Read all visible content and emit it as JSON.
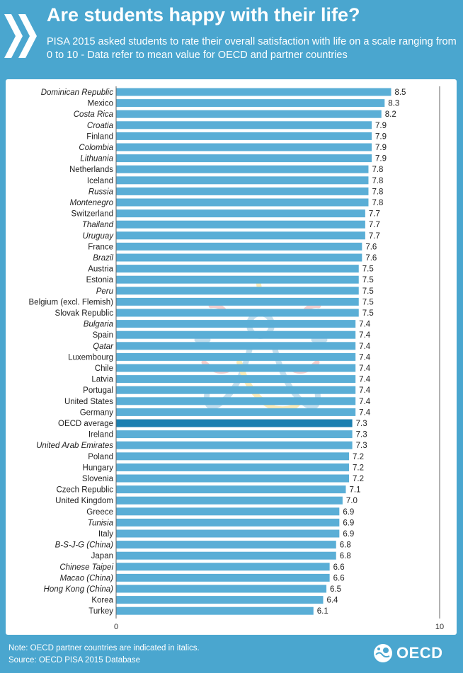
{
  "header": {
    "title": "Are students happy with their life?",
    "subtitle": "PISA 2015 asked students to rate their overall satisfaction with life on a scale ranging from 0 to 10 - Data refer to mean value for OECD and partner countries"
  },
  "chart_data": {
    "type": "bar",
    "orientation": "horizontal",
    "title": "Are students happy with their life?",
    "xlabel": "",
    "ylabel": "",
    "xlim": [
      0,
      10
    ],
    "ticks": [
      "0",
      "10"
    ],
    "categories": [
      "Dominican Republic",
      "Mexico",
      "Costa Rica",
      "Croatia",
      "Finland",
      "Colombia",
      "Lithuania",
      "Netherlands",
      "Iceland",
      "Russia",
      "Montenegro",
      "Switzerland",
      "Thailand",
      "Uruguay",
      "France",
      "Brazil",
      "Austria",
      "Estonia",
      "Peru",
      "Belgium (excl. Flemish)",
      "Slovak Republic",
      "Bulgaria",
      "Spain",
      "Qatar",
      "Luxembourg",
      "Chile",
      "Latvia",
      "Portugal",
      "United States",
      "Germany",
      "OECD average",
      "Ireland",
      "United Arab Emirates",
      "Poland",
      "Hungary",
      "Slovenia",
      "Czech Republic",
      "United Kingdom",
      "Greece",
      "Tunisia",
      "Italy",
      "B-S-J-G (China)",
      "Japan",
      "Chinese Taipei",
      "Macao (China)",
      "Hong Kong (China)",
      "Korea",
      "Turkey"
    ],
    "values": [
      8.5,
      8.3,
      8.2,
      7.9,
      7.9,
      7.9,
      7.9,
      7.8,
      7.8,
      7.8,
      7.8,
      7.7,
      7.7,
      7.7,
      7.6,
      7.6,
      7.5,
      7.5,
      7.5,
      7.5,
      7.5,
      7.4,
      7.4,
      7.4,
      7.4,
      7.4,
      7.4,
      7.4,
      7.4,
      7.4,
      7.3,
      7.3,
      7.3,
      7.2,
      7.2,
      7.2,
      7.1,
      7.0,
      6.9,
      6.9,
      6.9,
      6.8,
      6.8,
      6.6,
      6.6,
      6.5,
      6.4,
      6.1
    ],
    "value_labels": [
      "8.5",
      "8.3",
      "8.2",
      "7.9",
      "7.9",
      "7.9",
      "7.9",
      "7.8",
      "7.8",
      "7.8",
      "7.8",
      "7.7",
      "7.7",
      "7.7",
      "7.6",
      "7.6",
      "7.5",
      "7.5",
      "7.5",
      "7.5",
      "7.5",
      "7.4",
      "7.4",
      "7.4",
      "7.4",
      "7.4",
      "7.4",
      "7.4",
      "7.4",
      "7.4",
      "7.3",
      "7.3",
      "7.3",
      "7.2",
      "7.2",
      "7.2",
      "7.1",
      "7.0",
      "6.9",
      "6.9",
      "6.9",
      "6.8",
      "6.8",
      "6.6",
      "6.6",
      "6.5",
      "6.4",
      "6.1"
    ],
    "partner_countries": [
      "Dominican Republic",
      "Costa Rica",
      "Croatia",
      "Colombia",
      "Lithuania",
      "Russia",
      "Montenegro",
      "Thailand",
      "Uruguay",
      "Brazil",
      "Peru",
      "Bulgaria",
      "Qatar",
      "United Arab Emirates",
      "Tunisia",
      "B-S-J-G (China)",
      "Chinese Taipei",
      "Macao (China)",
      "Hong Kong (China)"
    ],
    "highlight": "OECD average",
    "colors": {
      "bar": "#5aaed6",
      "highlight_bar": "#1c7fb0",
      "axis": "#555555"
    }
  },
  "footer": {
    "note": "Note: OECD partner countries are indicated in italics.",
    "source": "Source: OECD PISA 2015 Database",
    "logo_text": "OECD"
  },
  "icons": [
    "chevrons-icon",
    "oecd-globe-icon"
  ]
}
